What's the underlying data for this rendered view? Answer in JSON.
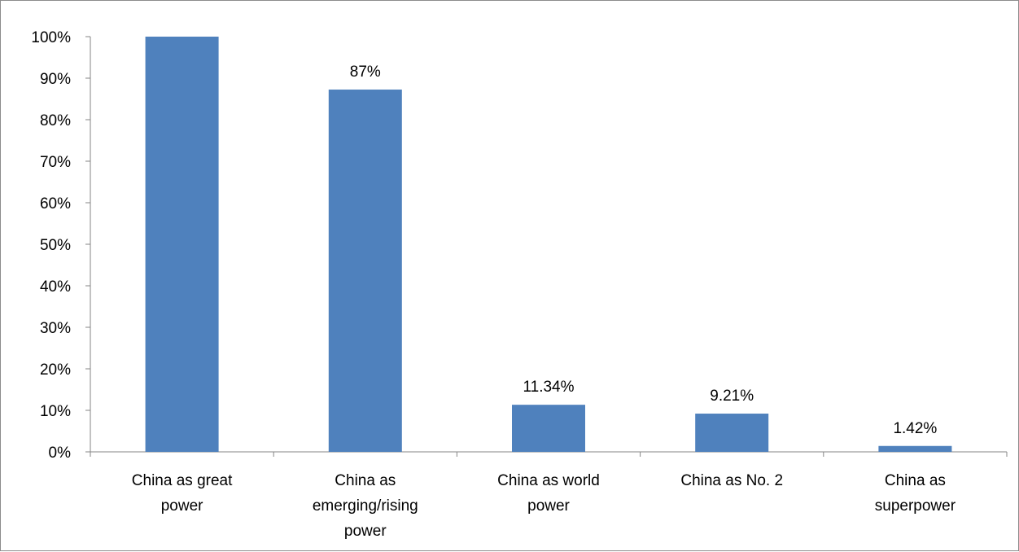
{
  "chart_data": {
    "type": "bar",
    "title": "",
    "xlabel": "",
    "ylabel": "",
    "categories": [
      [
        "China as great",
        "power"
      ],
      [
        "China as",
        "emerging/rising",
        "power"
      ],
      [
        "China as world",
        "power"
      ],
      [
        "China as No. 2"
      ],
      [
        "China as",
        "superpower"
      ]
    ],
    "values": [
      100,
      87.25,
      11.34,
      9.21,
      1.42
    ],
    "data_labels": [
      "",
      "87%",
      "11.34%",
      "9.21%",
      "1.42%"
    ],
    "yticks": [
      "0%",
      "10%",
      "20%",
      "30%",
      "40%",
      "50%",
      "60%",
      "70%",
      "80%",
      "90%",
      "100%"
    ],
    "ylim": [
      0,
      100
    ],
    "grid": false,
    "legend": "none",
    "bar_color": "#4f81bd"
  }
}
